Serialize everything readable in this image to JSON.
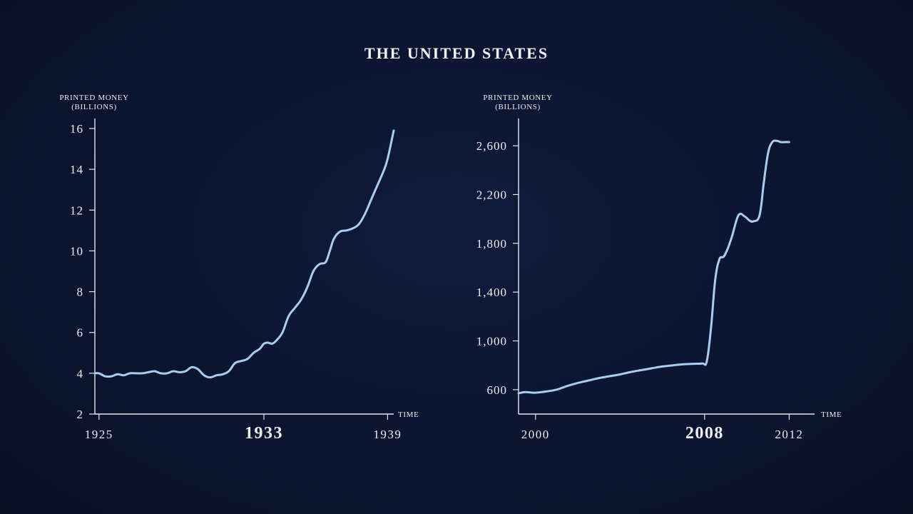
{
  "page_title": "THE UNITED STATES",
  "colors": {
    "background": "#0b1530",
    "axis": "#e8e8e8",
    "line": "#a9cdf0",
    "text": "#efefef"
  },
  "chart_data": [
    {
      "type": "line",
      "ylabel_line1": "PRINTED MONEY",
      "ylabel_line2": "(BILLIONS)",
      "xlabel": "TIME",
      "ylim": [
        2,
        16
      ],
      "xlim": [
        1924.8,
        1939.3
      ],
      "yticks": [
        2,
        4,
        6,
        8,
        10,
        12,
        14,
        16
      ],
      "ytick_labels": [
        "2",
        "4",
        "6",
        "8",
        "10",
        "12",
        "14",
        "16"
      ],
      "xticks": [
        {
          "value": 1925,
          "label": "1925",
          "emphasis": false
        },
        {
          "value": 1933,
          "label": "1933",
          "emphasis": true
        },
        {
          "value": 1939,
          "label": "1939",
          "emphasis": false
        }
      ],
      "series": [
        {
          "name": "Printed money",
          "x": [
            1924.8,
            1925.0,
            1925.3,
            1925.6,
            1925.9,
            1926.2,
            1926.5,
            1926.8,
            1927.1,
            1927.4,
            1927.7,
            1928.0,
            1928.3,
            1928.6,
            1928.9,
            1929.2,
            1929.5,
            1929.8,
            1930.1,
            1930.4,
            1930.7,
            1931.0,
            1931.3,
            1931.6,
            1931.9,
            1932.2,
            1932.5,
            1932.8,
            1933.0,
            1933.2,
            1933.4,
            1933.6,
            1933.9,
            1934.2,
            1934.5,
            1934.8,
            1935.1,
            1935.4,
            1935.7,
            1936.0,
            1936.2,
            1936.4,
            1936.7,
            1937.0,
            1937.3,
            1937.6,
            1937.9,
            1938.2,
            1938.5,
            1938.8,
            1939.0,
            1939.3
          ],
          "y": [
            4.0,
            4.0,
            3.85,
            3.85,
            3.95,
            3.9,
            4.0,
            4.0,
            4.0,
            4.05,
            4.1,
            4.0,
            4.0,
            4.1,
            4.05,
            4.1,
            4.3,
            4.2,
            3.9,
            3.8,
            3.9,
            3.95,
            4.1,
            4.5,
            4.6,
            4.7,
            5.0,
            5.2,
            5.45,
            5.5,
            5.45,
            5.6,
            6.0,
            6.8,
            7.2,
            7.6,
            8.2,
            9.0,
            9.35,
            9.45,
            10.0,
            10.6,
            10.95,
            11.0,
            11.1,
            11.3,
            11.8,
            12.5,
            13.2,
            13.9,
            14.5,
            15.9
          ]
        }
      ]
    },
    {
      "type": "line",
      "ylabel_line1": "PRINTED MONEY",
      "ylabel_line2": "(BILLIONS)",
      "xlabel": "TIME",
      "ylim": [
        400,
        2800
      ],
      "xlim": [
        1999.2,
        2013.2
      ],
      "yticks": [
        600,
        1000,
        1400,
        1800,
        2200,
        2600
      ],
      "ytick_labels": [
        "600",
        "1,000",
        "1,400",
        "1,800",
        "2,200",
        "2,600"
      ],
      "xticks": [
        {
          "value": 2000,
          "label": "2000",
          "emphasis": false
        },
        {
          "value": 2008,
          "label": "2008",
          "emphasis": true
        },
        {
          "value": 2012,
          "label": "2012",
          "emphasis": false
        }
      ],
      "series": [
        {
          "name": "Printed money",
          "x": [
            1999.2,
            1999.5,
            2000.0,
            2000.5,
            2001.0,
            2001.5,
            2002.0,
            2002.5,
            2003.0,
            2003.5,
            2004.0,
            2004.5,
            2005.0,
            2005.5,
            2006.0,
            2006.5,
            2007.0,
            2007.5,
            2007.9,
            2008.1,
            2008.3,
            2008.5,
            2008.7,
            2008.9,
            2009.1,
            2009.3,
            2009.6,
            2009.9,
            2010.1,
            2010.3,
            2010.6,
            2010.8,
            2011.0,
            2011.2,
            2011.4,
            2011.6,
            2011.8,
            2012.0
          ],
          "y": [
            570,
            580,
            575,
            585,
            600,
            630,
            655,
            675,
            695,
            710,
            725,
            745,
            760,
            775,
            790,
            800,
            808,
            812,
            815,
            830,
            1100,
            1500,
            1670,
            1690,
            1760,
            1860,
            2030,
            2020,
            1990,
            1980,
            2030,
            2300,
            2540,
            2630,
            2640,
            2630,
            2630,
            2630
          ]
        }
      ]
    }
  ]
}
